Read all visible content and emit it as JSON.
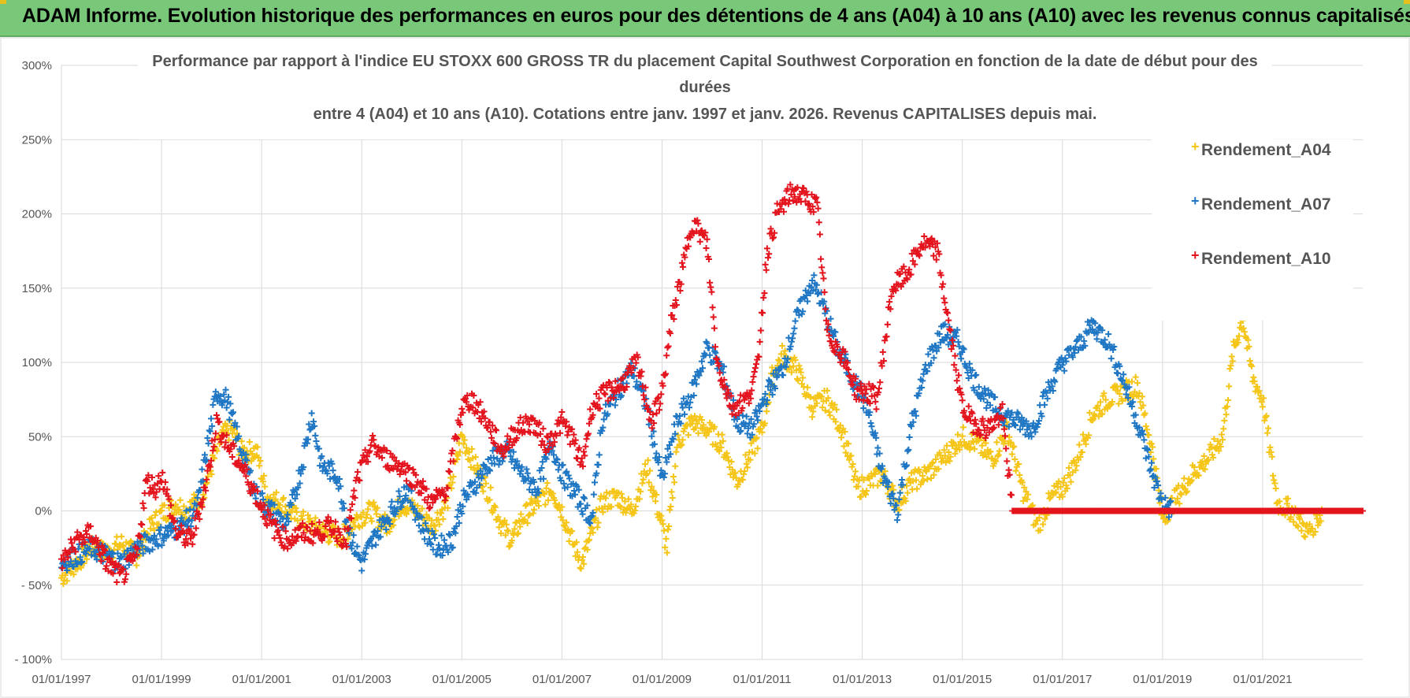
{
  "banner": {
    "title": "ADAM Informe. Evolution historique des performances en euros pour des détentions de 4 ans (A04) à 10 ans (A10) avec les revenus connus capitalisés"
  },
  "chart_data": {
    "type": "scatter",
    "title_lines": [
      "Performance par rapport à l'indice EU STOXX 600 GROSS TR  du placement Capital Southwest Corporation en fonction de la date de début pour des",
      "durées",
      "entre 4 (A04) et 10 ans (A10).  Cotations entre janv. 1997 et janv. 2026. Revenus CAPITALISES depuis mai."
    ],
    "xlabel": "",
    "ylabel": "",
    "x_range": [
      1997.0,
      2023.0
    ],
    "ylim": [
      -100,
      300
    ],
    "y_ticks": [
      -100,
      -50,
      0,
      50,
      100,
      150,
      200,
      250,
      300
    ],
    "y_tick_labels": [
      "- 100%",
      "- 50%",
      "0%",
      "50%",
      "100%",
      "150%",
      "200%",
      "250%",
      "300%"
    ],
    "x_ticks": [
      1997,
      1999,
      2001,
      2003,
      2005,
      2007,
      2009,
      2011,
      2013,
      2015,
      2017,
      2019,
      2021
    ],
    "x_tick_labels": [
      "01/01/1997",
      "01/01/1999",
      "01/01/2001",
      "01/01/2003",
      "01/01/2005",
      "01/01/2007",
      "01/01/2009",
      "01/01/2011",
      "01/01/2013",
      "01/01/2015",
      "01/01/2017",
      "01/01/2019",
      "01/01/2021"
    ],
    "grid": true,
    "legend_position": "top-right",
    "series": [
      {
        "name": "Rendement_A04",
        "color": "#f5c518",
        "marker": "+",
        "points": [
          [
            1997.0,
            -45
          ],
          [
            1997.3,
            -35
          ],
          [
            1997.6,
            -25
          ],
          [
            1997.9,
            -28
          ],
          [
            1998.2,
            -22
          ],
          [
            1998.5,
            -30
          ],
          [
            1998.8,
            -10
          ],
          [
            1999.0,
            -2
          ],
          [
            1999.3,
            5
          ],
          [
            1999.5,
            0
          ],
          [
            1999.8,
            10
          ],
          [
            2000.0,
            30
          ],
          [
            2000.2,
            50
          ],
          [
            2000.4,
            55
          ],
          [
            2000.6,
            40
          ],
          [
            2000.9,
            40
          ],
          [
            2001.1,
            10
          ],
          [
            2001.4,
            5
          ],
          [
            2001.7,
            -5
          ],
          [
            2002.0,
            -10
          ],
          [
            2002.3,
            -15
          ],
          [
            2002.6,
            -18
          ],
          [
            2002.9,
            -5
          ],
          [
            2003.2,
            0
          ],
          [
            2003.5,
            -10
          ],
          [
            2003.8,
            5
          ],
          [
            2004.1,
            0
          ],
          [
            2004.4,
            -10
          ],
          [
            2004.7,
            5
          ],
          [
            2005.0,
            50
          ],
          [
            2005.2,
            35
          ],
          [
            2005.5,
            15
          ],
          [
            2005.8,
            -10
          ],
          [
            2006.0,
            -20
          ],
          [
            2006.2,
            -5
          ],
          [
            2006.5,
            5
          ],
          [
            2006.8,
            15
          ],
          [
            2007.0,
            0
          ],
          [
            2007.2,
            -20
          ],
          [
            2007.4,
            -35
          ],
          [
            2007.6,
            -15
          ],
          [
            2007.8,
            5
          ],
          [
            2008.1,
            10
          ],
          [
            2008.4,
            0
          ],
          [
            2008.7,
            30
          ],
          [
            2009.0,
            -10
          ],
          [
            2009.1,
            -25
          ],
          [
            2009.3,
            45
          ],
          [
            2009.6,
            60
          ],
          [
            2009.9,
            55
          ],
          [
            2010.2,
            45
          ],
          [
            2010.5,
            20
          ],
          [
            2010.8,
            40
          ],
          [
            2011.0,
            55
          ],
          [
            2011.2,
            90
          ],
          [
            2011.4,
            105
          ],
          [
            2011.7,
            95
          ],
          [
            2012.0,
            70
          ],
          [
            2012.3,
            75
          ],
          [
            2012.6,
            55
          ],
          [
            2012.9,
            15
          ],
          [
            2013.2,
            20
          ],
          [
            2013.4,
            25
          ],
          [
            2013.7,
            5
          ],
          [
            2014.0,
            20
          ],
          [
            2014.3,
            25
          ],
          [
            2014.6,
            35
          ],
          [
            2015.0,
            50
          ],
          [
            2015.3,
            45
          ],
          [
            2015.6,
            35
          ],
          [
            2015.9,
            55
          ],
          [
            2016.2,
            15
          ],
          [
            2016.5,
            -10
          ],
          [
            2016.8,
            10
          ],
          [
            2017.0,
            15
          ],
          [
            2017.3,
            35
          ],
          [
            2017.6,
            65
          ],
          [
            2017.9,
            75
          ],
          [
            2018.2,
            80
          ],
          [
            2018.5,
            85
          ],
          [
            2018.8,
            40
          ],
          [
            2019.0,
            -5
          ],
          [
            2019.3,
            10
          ],
          [
            2019.6,
            25
          ],
          [
            2019.9,
            35
          ],
          [
            2020.2,
            50
          ],
          [
            2020.4,
            105
          ],
          [
            2020.6,
            130
          ],
          [
            2020.8,
            90
          ],
          [
            2021.0,
            75
          ],
          [
            2021.3,
            5
          ],
          [
            2021.6,
            0
          ],
          [
            2021.9,
            -15
          ],
          [
            2022.2,
            0
          ],
          [
            2022.6,
            0
          ],
          [
            2023.0,
            0
          ]
        ]
      },
      {
        "name": "Rendement_A07",
        "color": "#1f77c4",
        "marker": "+",
        "points": [
          [
            1997.0,
            -35
          ],
          [
            1997.3,
            -30
          ],
          [
            1997.6,
            -25
          ],
          [
            1997.9,
            -30
          ],
          [
            1998.2,
            -35
          ],
          [
            1998.5,
            -25
          ],
          [
            1998.8,
            -20
          ],
          [
            1999.1,
            -15
          ],
          [
            1999.4,
            -10
          ],
          [
            1999.7,
            0
          ],
          [
            1999.9,
            40
          ],
          [
            2000.1,
            80
          ],
          [
            2000.3,
            75
          ],
          [
            2000.6,
            40
          ],
          [
            2000.9,
            10
          ],
          [
            2001.2,
            0
          ],
          [
            2001.5,
            -10
          ],
          [
            2001.8,
            30
          ],
          [
            2002.0,
            65
          ],
          [
            2002.2,
            30
          ],
          [
            2002.5,
            25
          ],
          [
            2002.8,
            -20
          ],
          [
            2003.0,
            -35
          ],
          [
            2003.3,
            -15
          ],
          [
            2003.6,
            0
          ],
          [
            2003.9,
            15
          ],
          [
            2004.2,
            -10
          ],
          [
            2004.5,
            -25
          ],
          [
            2004.8,
            -20
          ],
          [
            2005.0,
            5
          ],
          [
            2005.3,
            20
          ],
          [
            2005.6,
            35
          ],
          [
            2005.9,
            40
          ],
          [
            2006.2,
            25
          ],
          [
            2006.5,
            15
          ],
          [
            2006.8,
            45
          ],
          [
            2007.0,
            25
          ],
          [
            2007.3,
            10
          ],
          [
            2007.6,
            -5
          ],
          [
            2007.8,
            60
          ],
          [
            2008.1,
            80
          ],
          [
            2008.4,
            95
          ],
          [
            2008.7,
            70
          ],
          [
            2009.0,
            20
          ],
          [
            2009.3,
            60
          ],
          [
            2009.6,
            80
          ],
          [
            2009.9,
            110
          ],
          [
            2010.2,
            95
          ],
          [
            2010.5,
            60
          ],
          [
            2010.8,
            55
          ],
          [
            2011.1,
            80
          ],
          [
            2011.4,
            95
          ],
          [
            2011.7,
            130
          ],
          [
            2012.0,
            155
          ],
          [
            2012.2,
            140
          ],
          [
            2012.5,
            110
          ],
          [
            2012.8,
            90
          ],
          [
            2013.1,
            70
          ],
          [
            2013.4,
            25
          ],
          [
            2013.7,
            0
          ],
          [
            2014.0,
            60
          ],
          [
            2014.3,
            100
          ],
          [
            2014.6,
            120
          ],
          [
            2014.9,
            115
          ],
          [
            2015.2,
            90
          ],
          [
            2015.5,
            75
          ],
          [
            2015.8,
            65
          ],
          [
            2016.1,
            60
          ],
          [
            2016.4,
            55
          ],
          [
            2016.7,
            80
          ],
          [
            2017.0,
            100
          ],
          [
            2017.3,
            110
          ],
          [
            2017.6,
            125
          ],
          [
            2017.9,
            115
          ],
          [
            2018.2,
            90
          ],
          [
            2018.5,
            60
          ],
          [
            2018.8,
            25
          ],
          [
            2019.0,
            5
          ],
          [
            2019.2,
            0
          ],
          [
            2019.6,
            0
          ],
          [
            2020.0,
            0
          ],
          [
            2020.5,
            0
          ],
          [
            2021.0,
            0
          ],
          [
            2021.5,
            0
          ],
          [
            2022.0,
            0
          ],
          [
            2022.5,
            0
          ],
          [
            2023.0,
            0
          ]
        ]
      },
      {
        "name": "Rendement_A10",
        "color": "#e3141d",
        "marker": "+",
        "points": [
          [
            1997.0,
            -35
          ],
          [
            1997.3,
            -20
          ],
          [
            1997.6,
            -15
          ],
          [
            1997.9,
            -35
          ],
          [
            1998.2,
            -45
          ],
          [
            1998.5,
            -30
          ],
          [
            1998.7,
            20
          ],
          [
            1998.9,
            15
          ],
          [
            1999.0,
            25
          ],
          [
            1999.3,
            -15
          ],
          [
            1999.6,
            -20
          ],
          [
            1999.9,
            20
          ],
          [
            2000.1,
            60
          ],
          [
            2000.3,
            45
          ],
          [
            2000.6,
            30
          ],
          [
            2000.9,
            10
          ],
          [
            2001.2,
            -10
          ],
          [
            2001.5,
            -20
          ],
          [
            2001.8,
            -15
          ],
          [
            2002.1,
            -15
          ],
          [
            2002.4,
            -10
          ],
          [
            2002.7,
            -20
          ],
          [
            2002.9,
            20
          ],
          [
            2003.2,
            45
          ],
          [
            2003.5,
            35
          ],
          [
            2003.8,
            30
          ],
          [
            2004.1,
            20
          ],
          [
            2004.4,
            5
          ],
          [
            2004.7,
            15
          ],
          [
            2005.0,
            70
          ],
          [
            2005.2,
            75
          ],
          [
            2005.5,
            60
          ],
          [
            2005.8,
            40
          ],
          [
            2006.1,
            55
          ],
          [
            2006.4,
            60
          ],
          [
            2006.7,
            45
          ],
          [
            2007.0,
            60
          ],
          [
            2007.2,
            50
          ],
          [
            2007.4,
            30
          ],
          [
            2007.6,
            70
          ],
          [
            2007.9,
            80
          ],
          [
            2008.2,
            85
          ],
          [
            2008.5,
            100
          ],
          [
            2008.8,
            60
          ],
          [
            2009.0,
            80
          ],
          [
            2009.2,
            130
          ],
          [
            2009.4,
            160
          ],
          [
            2009.6,
            195
          ],
          [
            2009.9,
            180
          ],
          [
            2010.1,
            100
          ],
          [
            2010.4,
            70
          ],
          [
            2010.7,
            75
          ],
          [
            2010.9,
            95
          ],
          [
            2011.1,
            175
          ],
          [
            2011.3,
            200
          ],
          [
            2011.6,
            215
          ],
          [
            2011.9,
            210
          ],
          [
            2012.1,
            205
          ],
          [
            2012.3,
            120
          ],
          [
            2012.6,
            105
          ],
          [
            2012.9,
            80
          ],
          [
            2013.1,
            80
          ],
          [
            2013.3,
            75
          ],
          [
            2013.6,
            150
          ],
          [
            2013.9,
            160
          ],
          [
            2014.2,
            180
          ],
          [
            2014.5,
            175
          ],
          [
            2014.8,
            110
          ],
          [
            2015.0,
            70
          ],
          [
            2015.2,
            60
          ],
          [
            2015.5,
            55
          ],
          [
            2015.8,
            65
          ],
          [
            2016.0,
            0
          ],
          [
            2016.5,
            0
          ],
          [
            2017.0,
            0
          ],
          [
            2017.5,
            0
          ],
          [
            2018.0,
            0
          ],
          [
            2018.5,
            0
          ],
          [
            2019.0,
            0
          ],
          [
            2019.5,
            0
          ],
          [
            2020.0,
            0
          ],
          [
            2020.5,
            0
          ],
          [
            2021.0,
            0
          ],
          [
            2021.5,
            0
          ],
          [
            2022.0,
            0
          ],
          [
            2022.5,
            0
          ],
          [
            2023.0,
            0
          ]
        ]
      }
    ]
  }
}
